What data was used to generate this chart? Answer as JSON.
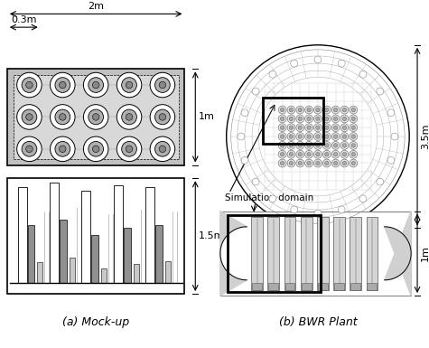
{
  "bg_color": "#ffffff",
  "line_color": "#000000",
  "gray_fill": "#c8c8c8",
  "light_fill": "#e8e8e8",
  "med_gray": "#aaaaaa",
  "title_a": "(a) Mock-up",
  "title_b": "(b) BWR Plant",
  "dim_2m": "2m",
  "dim_03m": "0.3m",
  "dim_1m_a": "1m",
  "dim_15m": "1.5m",
  "dim_35m": "3.5m",
  "dim_1m_b": "1m",
  "sim_domain": "Simulation domain",
  "font_size_title": 9,
  "font_size_dim": 8
}
